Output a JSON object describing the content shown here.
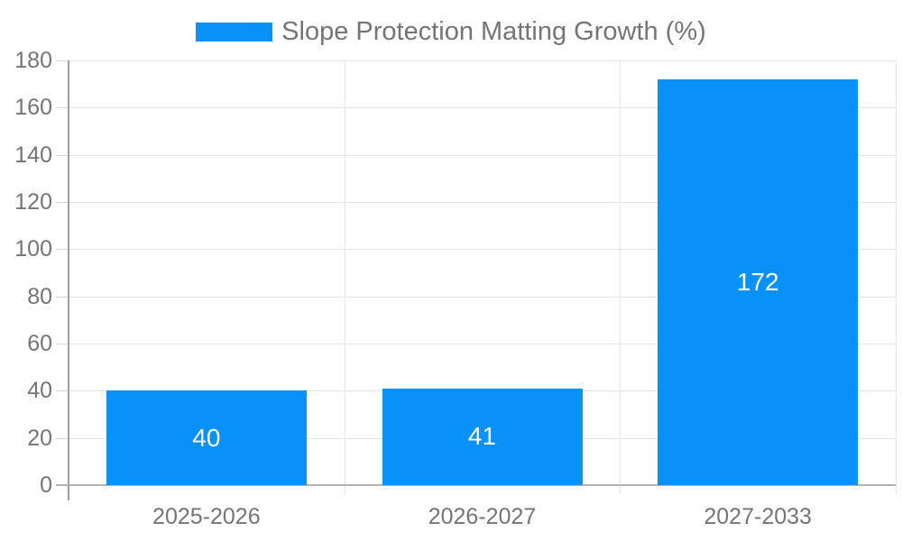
{
  "chart_data": {
    "type": "bar",
    "title": "Slope Protection Matting Growth (%)",
    "categories": [
      "2025-2026",
      "2026-2027",
      "2027-2033"
    ],
    "values": [
      40,
      41,
      172
    ],
    "value_labels": [
      "40",
      "41",
      "172"
    ],
    "xlabel": "",
    "ylabel": "",
    "ylim": [
      0,
      180
    ],
    "yticks": [
      0,
      20,
      40,
      60,
      80,
      100,
      120,
      140,
      160,
      180
    ],
    "grid": true,
    "legend_position": "top-center",
    "colors": {
      "bar": "#0991fa",
      "value_label": "#ffffff",
      "grid_line": "#e6e6e6",
      "axis_line": "#9e9e9e",
      "baseline": "#b3b3b3",
      "tick": "#d6d6d6",
      "tick_label": "#757575",
      "background": "#ffffff"
    }
  }
}
